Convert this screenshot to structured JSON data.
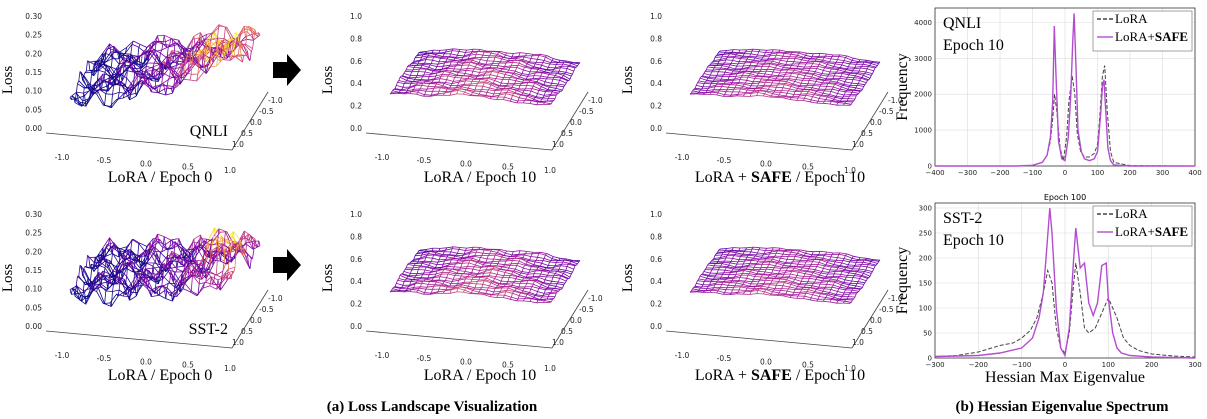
{
  "captions": {
    "left": "(a) Loss Landscape Visualization",
    "right": "(b) Hessian Eigenvalue Spectrum"
  },
  "landscapes": {
    "z_label": "Loss",
    "x_ticks": [
      "-1.0",
      "-0.5",
      "0.0",
      "0.5",
      "1.0"
    ],
    "y_ticks": [
      "-1.0",
      "-0.5",
      "0.0",
      "0.5",
      "1.0"
    ],
    "panels": [
      {
        "label": "LoRA / Epoch 0",
        "label_bold": "",
        "label_tail": "",
        "tag": "QNLI",
        "z_ticks": [
          "0.00",
          "0.05",
          "0.10",
          "0.15",
          "0.20",
          "0.25",
          "0.30"
        ],
        "variant": "rough"
      },
      {
        "label": "LoRA / Epoch 10",
        "label_bold": "",
        "label_tail": "",
        "tag": "",
        "z_ticks": [
          "0.0",
          "0.2",
          "0.4",
          "0.6",
          "0.8",
          "1.0"
        ],
        "variant": "flat"
      },
      {
        "label": "LoRA + ",
        "label_bold": "SAFE",
        "label_tail": " / Epoch 10",
        "tag": "",
        "z_ticks": [
          "0.0",
          "0.2",
          "0.4",
          "0.6",
          "0.8",
          "1.0"
        ],
        "variant": "flatter"
      },
      {
        "label": "LoRA / Epoch 0",
        "label_bold": "",
        "label_tail": "",
        "tag": "SST-2",
        "z_ticks": [
          "0.00",
          "0.05",
          "0.10",
          "0.15",
          "0.20",
          "0.25",
          "0.30"
        ],
        "variant": "rough2"
      },
      {
        "label": "LoRA / Epoch 10",
        "label_bold": "",
        "label_tail": "",
        "tag": "",
        "z_ticks": [
          "0.0",
          "0.2",
          "0.4",
          "0.6",
          "0.8",
          "1.0"
        ],
        "variant": "flat"
      },
      {
        "label": "LoRA + ",
        "label_bold": "SAFE",
        "label_tail": " / Epoch 10",
        "tag": "",
        "z_ticks": [
          "0.0",
          "0.2",
          "0.4",
          "0.6",
          "0.8",
          "1.0"
        ],
        "variant": "flatter"
      }
    ]
  },
  "chart_data": [
    {
      "type": "line",
      "annotation": [
        "QNLI",
        "Epoch 10"
      ],
      "ylabel": "Frequency",
      "xlabel": "",
      "top_label": "",
      "xlim": [
        -400,
        400
      ],
      "ylim": [
        0,
        4400
      ],
      "xticks": [
        -400,
        -300,
        -200,
        -100,
        0,
        100,
        200,
        300,
        400
      ],
      "yticks": [
        0,
        1000,
        2000,
        3000,
        4000
      ],
      "grid": true,
      "legend_position": "top-right",
      "series": [
        {
          "name": "LoRA",
          "style": "dashed",
          "color": "#444444",
          "x": [
            -400,
            -150,
            -100,
            -70,
            -55,
            -45,
            -38,
            -32,
            -25,
            -15,
            -5,
            5,
            12,
            22,
            30,
            38,
            48,
            60,
            75,
            90,
            100,
            108,
            115,
            122,
            130,
            140,
            150,
            200,
            400
          ],
          "y": [
            0,
            0,
            20,
            100,
            300,
            700,
            1300,
            2000,
            1500,
            500,
            150,
            800,
            1800,
            2500,
            2000,
            900,
            400,
            250,
            250,
            350,
            600,
            1500,
            2500,
            2800,
            1500,
            400,
            100,
            10,
            0
          ]
        },
        {
          "name": "LoRA+SAFE",
          "style": "solid",
          "color": "#b44ccf",
          "x": [
            -400,
            -150,
            -100,
            -70,
            -55,
            -45,
            -38,
            -33,
            -28,
            -20,
            -10,
            0,
            10,
            18,
            24,
            28,
            33,
            40,
            50,
            60,
            75,
            90,
            100,
            110,
            115,
            120,
            125,
            132,
            140,
            150,
            200,
            400
          ],
          "y": [
            0,
            0,
            20,
            100,
            300,
            800,
            1800,
            3900,
            2600,
            700,
            200,
            150,
            800,
            2000,
            3500,
            4250,
            3000,
            1000,
            400,
            200,
            150,
            200,
            400,
            1500,
            2200,
            2400,
            1600,
            500,
            150,
            30,
            0,
            0
          ]
        }
      ]
    },
    {
      "type": "line",
      "annotation": [
        "SST-2",
        "Epoch 10"
      ],
      "ylabel": "Frequency",
      "xlabel": "Hessian Max Eigenvalue",
      "top_label": "Epoch 100",
      "xlim": [
        -300,
        300
      ],
      "ylim": [
        0,
        310
      ],
      "xticks": [
        -300,
        -200,
        -100,
        0,
        100,
        200,
        300
      ],
      "yticks": [
        0,
        50,
        100,
        150,
        200,
        250,
        300
      ],
      "grid": true,
      "legend_position": "top-right",
      "series": [
        {
          "name": "LoRA",
          "style": "dashed",
          "color": "#444444",
          "x": [
            -300,
            -250,
            -200,
            -150,
            -120,
            -100,
            -80,
            -65,
            -50,
            -40,
            -30,
            -20,
            -10,
            0,
            10,
            20,
            25,
            35,
            45,
            55,
            70,
            85,
            100,
            110,
            120,
            135,
            150,
            170,
            200,
            250,
            300
          ],
          "y": [
            3,
            5,
            12,
            25,
            30,
            40,
            55,
            80,
            130,
            175,
            150,
            60,
            20,
            10,
            50,
            150,
            190,
            130,
            60,
            50,
            60,
            90,
            120,
            100,
            80,
            40,
            25,
            15,
            8,
            4,
            2
          ]
        },
        {
          "name": "LoRA+SAFE",
          "style": "solid",
          "color": "#b44ccf",
          "x": [
            -300,
            -200,
            -150,
            -100,
            -75,
            -60,
            -50,
            -42,
            -35,
            -30,
            -20,
            -10,
            0,
            10,
            20,
            25,
            35,
            45,
            55,
            65,
            75,
            85,
            95,
            100,
            110,
            120,
            130,
            150,
            200,
            300
          ],
          "y": [
            3,
            5,
            10,
            20,
            40,
            80,
            130,
            220,
            300,
            250,
            100,
            20,
            5,
            60,
            200,
            260,
            180,
            190,
            110,
            85,
            110,
            185,
            190,
            120,
            50,
            20,
            10,
            5,
            2,
            0
          ]
        }
      ]
    }
  ]
}
